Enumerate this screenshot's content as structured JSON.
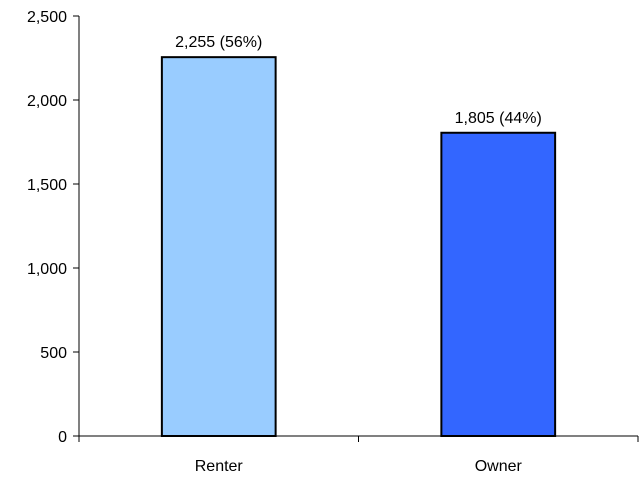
{
  "chart_data": {
    "type": "bar",
    "title": "",
    "xlabel": "",
    "ylabel": "",
    "categories": [
      "Renter",
      "Owner"
    ],
    "values": [
      2255,
      1805
    ],
    "data_labels": [
      "2,255 (56%)",
      "1,805 (44%)"
    ],
    "bar_colors": [
      "#99ccff",
      "#3366ff"
    ],
    "ylim": [
      0,
      2500
    ],
    "yticks": [
      0,
      500,
      1000,
      1500,
      2000,
      2500
    ],
    "ytick_labels": [
      "0",
      "500",
      "1,000",
      "1,500",
      "2,000",
      "2,500"
    ],
    "grid": false,
    "legend": "none"
  }
}
